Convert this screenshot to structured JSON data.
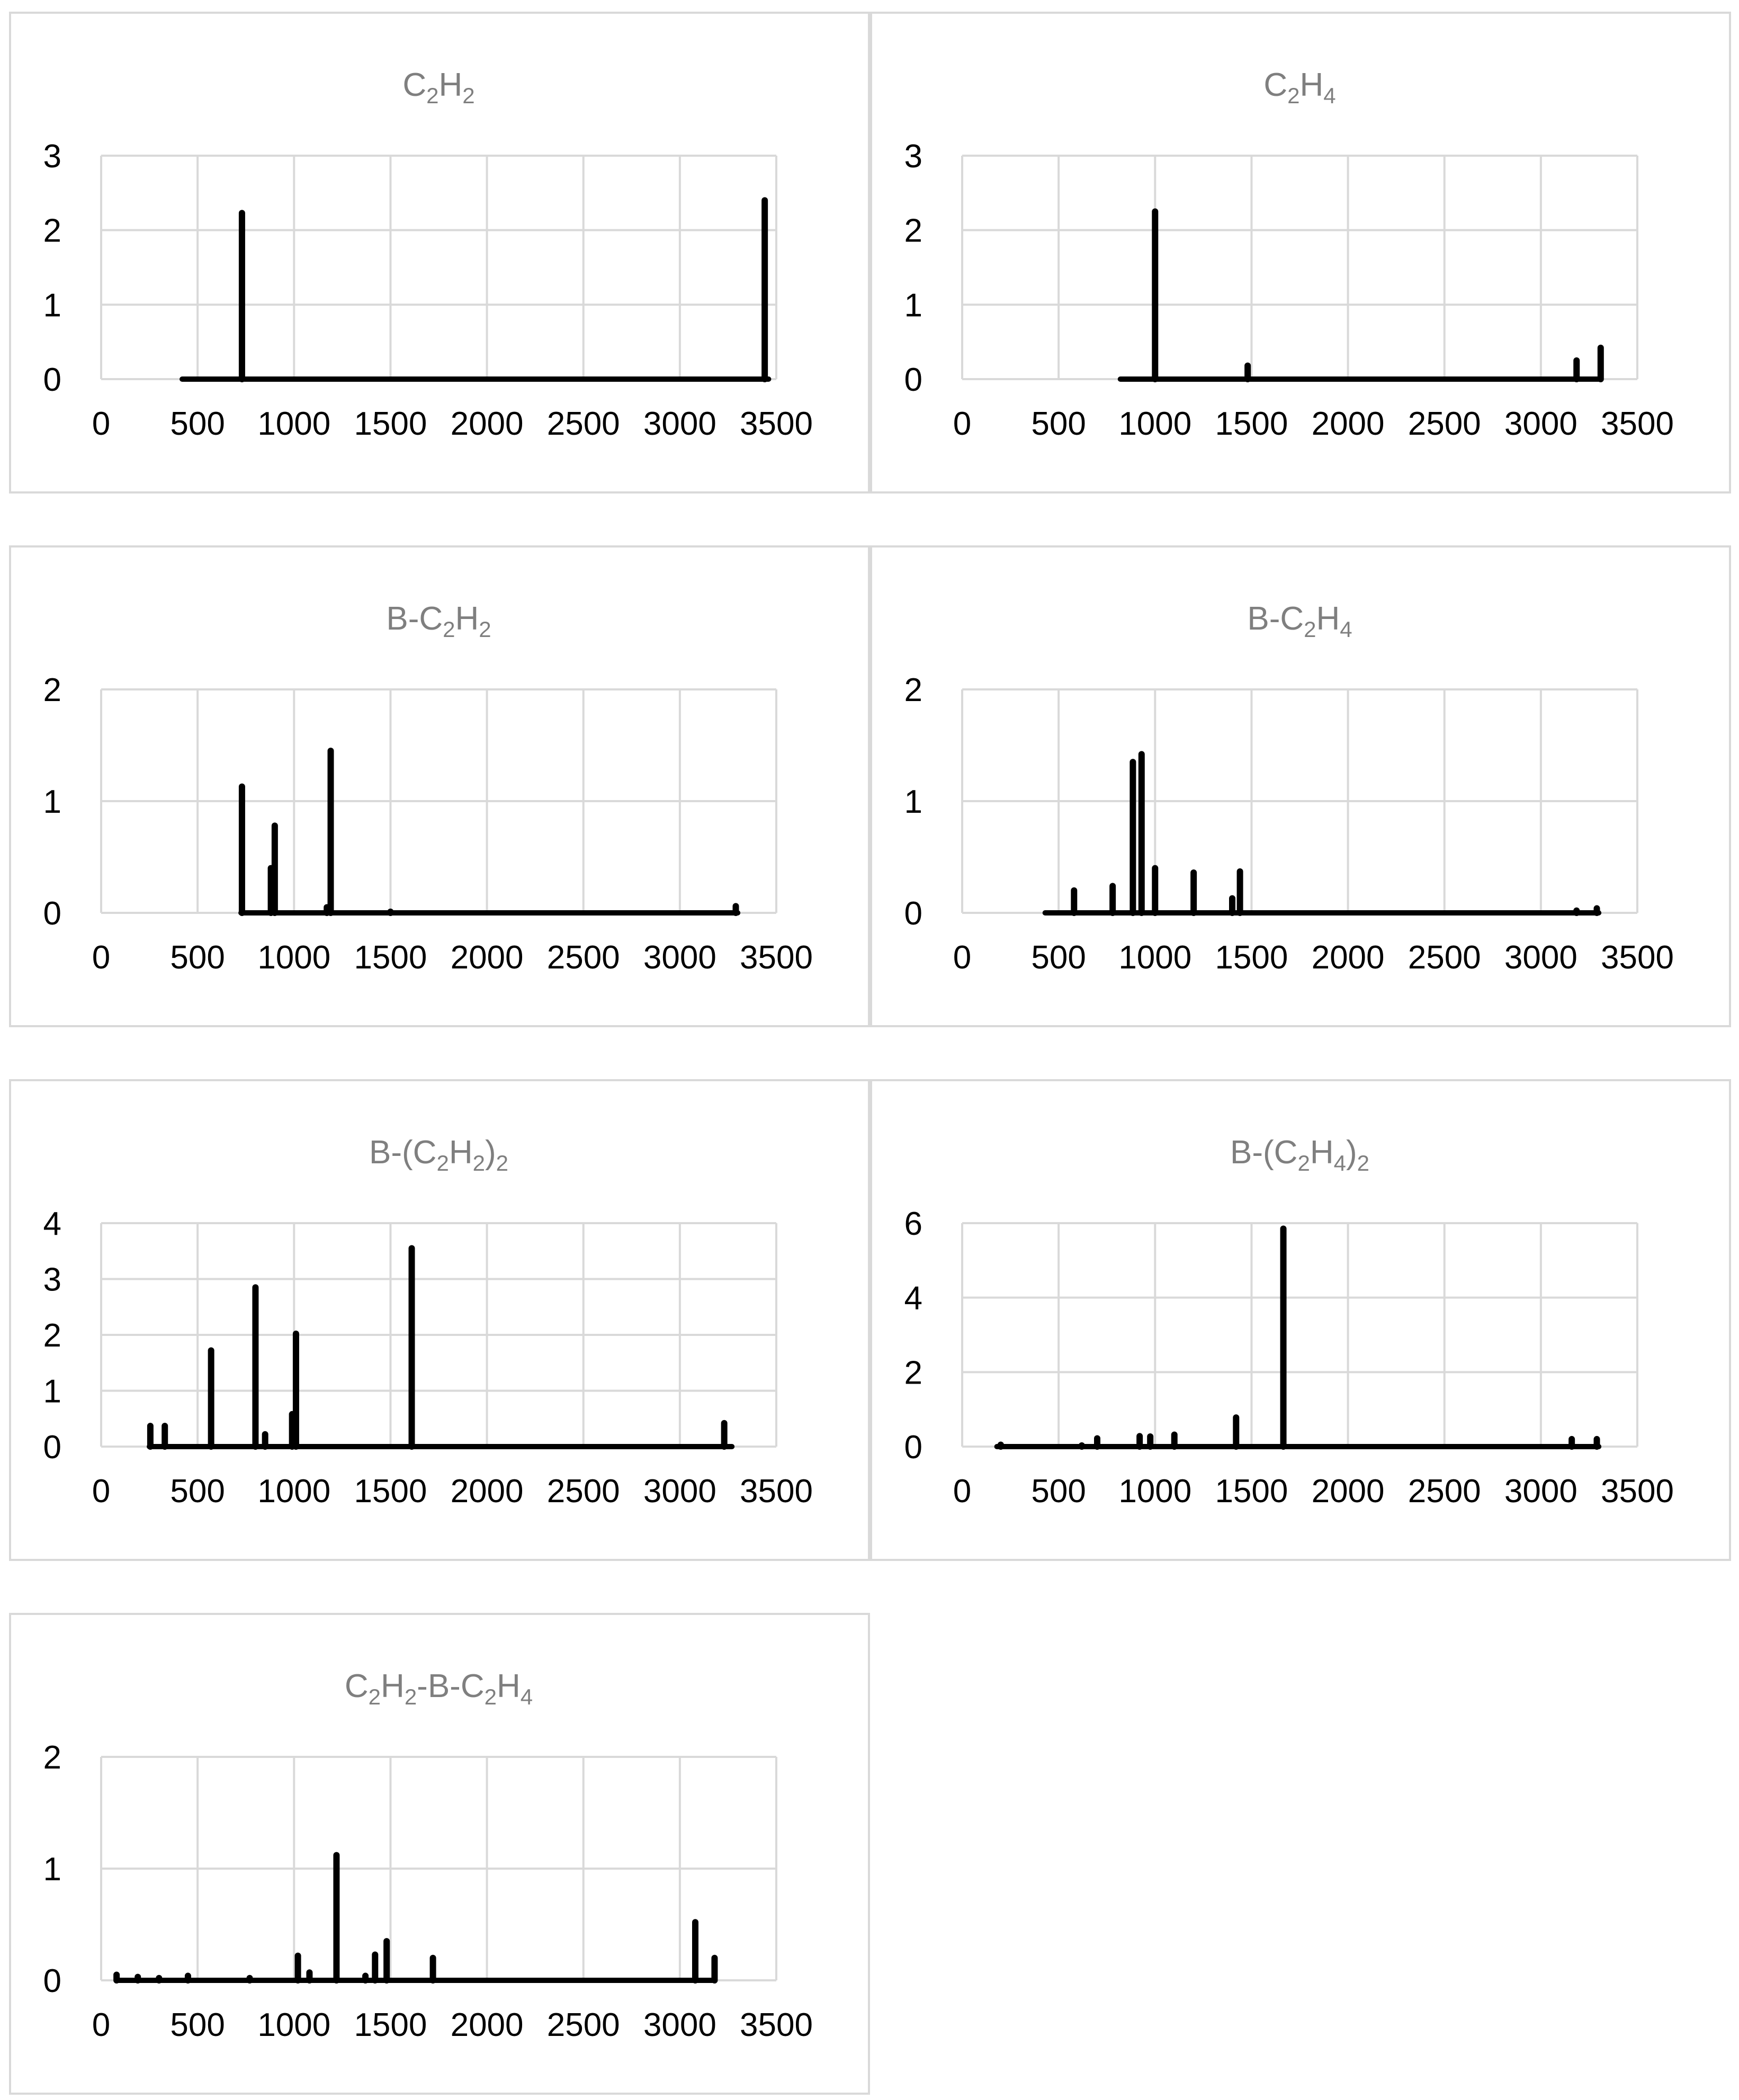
{
  "colors": {
    "grid": "#d9d9d9",
    "bar": "#000000",
    "title": "#7f7f7f",
    "axis_text": "#000000"
  },
  "chart_data": [
    {
      "type": "bar",
      "title": {
        "parts": [
          [
            "C",
            ""
          ],
          [
            "2",
            "sub"
          ],
          [
            "H",
            ""
          ],
          [
            "2",
            "sub"
          ]
        ]
      },
      "xlim": [
        0,
        3500
      ],
      "ylim": [
        0,
        3
      ],
      "xticks": [
        "0",
        "500",
        "1000",
        "1500",
        "2000",
        "2500",
        "3000",
        "3500"
      ],
      "yticks": [
        "0",
        "1",
        "2",
        "3"
      ],
      "baseline": [
        420,
        3460
      ],
      "x": [
        730,
        3440
      ],
      "values": [
        2.23,
        2.4
      ]
    },
    {
      "type": "bar",
      "title": {
        "parts": [
          [
            "C",
            ""
          ],
          [
            "2",
            "sub"
          ],
          [
            "H",
            ""
          ],
          [
            "4",
            "sub"
          ]
        ]
      },
      "xlim": [
        0,
        3500
      ],
      "ylim": [
        0,
        3
      ],
      "xticks": [
        "0",
        "500",
        "1000",
        "1500",
        "2000",
        "2500",
        "3000",
        "3500"
      ],
      "yticks": [
        "0",
        "1",
        "2",
        "3"
      ],
      "baseline": [
        820,
        3310
      ],
      "x": [
        1000,
        1480,
        3185,
        3310
      ],
      "values": [
        2.25,
        0.18,
        0.25,
        0.42
      ]
    },
    {
      "type": "bar",
      "title": {
        "parts": [
          [
            "B-C",
            ""
          ],
          [
            "2",
            "sub"
          ],
          [
            "H",
            ""
          ],
          [
            "2",
            "sub"
          ]
        ]
      },
      "xlim": [
        0,
        3500
      ],
      "ylim": [
        0,
        2
      ],
      "xticks": [
        "0",
        "500",
        "1000",
        "1500",
        "2000",
        "2500",
        "3000",
        "3500"
      ],
      "yticks": [
        "0",
        "1",
        "2"
      ],
      "baseline": [
        725,
        3300
      ],
      "x": [
        730,
        880,
        900,
        1170,
        1190,
        1500,
        3290
      ],
      "values": [
        1.13,
        0.4,
        0.78,
        0.05,
        1.45,
        0.01,
        0.06
      ]
    },
    {
      "type": "bar",
      "title": {
        "parts": [
          [
            "B-C",
            ""
          ],
          [
            "2",
            "sub"
          ],
          [
            "H",
            ""
          ],
          [
            "4",
            "sub"
          ]
        ]
      },
      "xlim": [
        0,
        3500
      ],
      "ylim": [
        0,
        2
      ],
      "xticks": [
        "0",
        "500",
        "1000",
        "1500",
        "2000",
        "2500",
        "3000",
        "3500"
      ],
      "yticks": [
        "0",
        "1",
        "2"
      ],
      "baseline": [
        430,
        3300
      ],
      "x": [
        580,
        780,
        885,
        930,
        1000,
        1200,
        1400,
        1440,
        3185,
        3290
      ],
      "values": [
        0.2,
        0.24,
        1.35,
        1.42,
        0.4,
        0.36,
        0.13,
        0.37,
        0.02,
        0.04
      ]
    },
    {
      "type": "bar",
      "title": {
        "parts": [
          [
            "B-(C",
            ""
          ],
          [
            "2",
            "sub"
          ],
          [
            "H",
            ""
          ],
          [
            "2",
            "sub"
          ],
          [
            ")",
            ""
          ],
          [
            "2",
            "sub"
          ]
        ]
      },
      "xlim": [
        0,
        3500
      ],
      "ylim": [
        0,
        4
      ],
      "xticks": [
        "0",
        "500",
        "1000",
        "1500",
        "2000",
        "2500",
        "3000",
        "3500"
      ],
      "yticks": [
        "0",
        "1",
        "2",
        "3",
        "4"
      ],
      "baseline": [
        250,
        3270
      ],
      "x": [
        255,
        330,
        570,
        800,
        850,
        990,
        1010,
        1610,
        3230
      ],
      "values": [
        0.37,
        0.37,
        1.72,
        2.85,
        0.22,
        0.58,
        2.02,
        3.55,
        0.42
      ]
    },
    {
      "type": "bar",
      "title": {
        "parts": [
          [
            "B-(C",
            ""
          ],
          [
            "2",
            "sub"
          ],
          [
            "H",
            ""
          ],
          [
            "4",
            "sub"
          ],
          [
            ")",
            ""
          ],
          [
            "2",
            "sub"
          ]
        ]
      },
      "xlim": [
        0,
        3500
      ],
      "ylim": [
        0,
        6
      ],
      "xticks": [
        "0",
        "500",
        "1000",
        "1500",
        "2000",
        "2500",
        "3000",
        "3500"
      ],
      "yticks": [
        "0",
        "2",
        "4",
        "6"
      ],
      "yticks_values": [
        0,
        2,
        4,
        6
      ],
      "baseline": [
        180,
        3300
      ],
      "x": [
        200,
        620,
        700,
        920,
        975,
        1100,
        1420,
        1665,
        3160,
        3290
      ],
      "values": [
        0.05,
        0.03,
        0.22,
        0.28,
        0.27,
        0.32,
        0.78,
        5.85,
        0.2,
        0.2
      ]
    },
    {
      "type": "bar",
      "title": {
        "parts": [
          [
            "C",
            ""
          ],
          [
            "2",
            "sub"
          ],
          [
            "H",
            ""
          ],
          [
            "2",
            "sub"
          ],
          [
            "-B-C",
            ""
          ],
          [
            "2",
            "sub"
          ],
          [
            "H",
            ""
          ],
          [
            "4",
            "sub"
          ]
        ]
      },
      "xlim": [
        0,
        3500
      ],
      "ylim": [
        0,
        2
      ],
      "xticks": [
        "0",
        "500",
        "1000",
        "1500",
        "2000",
        "2500",
        "3000",
        "3500"
      ],
      "yticks": [
        "0",
        "1",
        "2"
      ],
      "baseline": [
        80,
        3170
      ],
      "x": [
        80,
        190,
        300,
        450,
        770,
        1020,
        1080,
        1220,
        1370,
        1420,
        1480,
        1720,
        3080,
        3180
      ],
      "values": [
        0.05,
        0.03,
        0.02,
        0.04,
        0.02,
        0.22,
        0.07,
        1.12,
        0.04,
        0.23,
        0.35,
        0.2,
        0.52,
        0.2
      ]
    }
  ]
}
